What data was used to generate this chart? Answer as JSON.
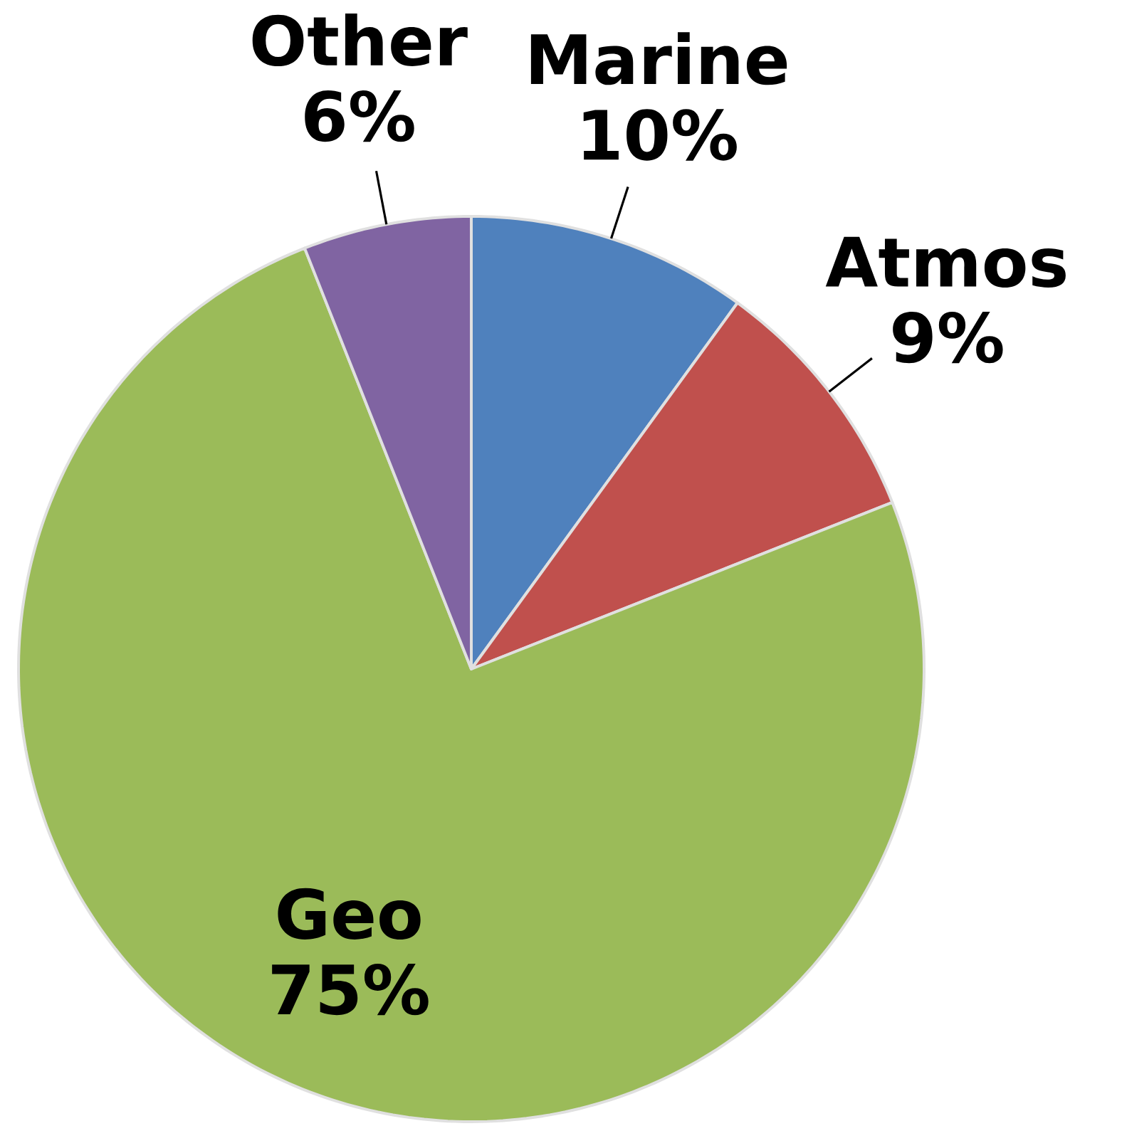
{
  "chart_data": {
    "type": "pie",
    "categories": [
      "Marine",
      "Atmos",
      "Geo",
      "Other"
    ],
    "values": [
      10,
      9,
      75,
      6
    ],
    "colors": [
      "#4f81bd",
      "#c0504d",
      "#9bbb59",
      "#8064a2"
    ],
    "value_labels": [
      "10%",
      "9%",
      "75%",
      "6%"
    ]
  }
}
